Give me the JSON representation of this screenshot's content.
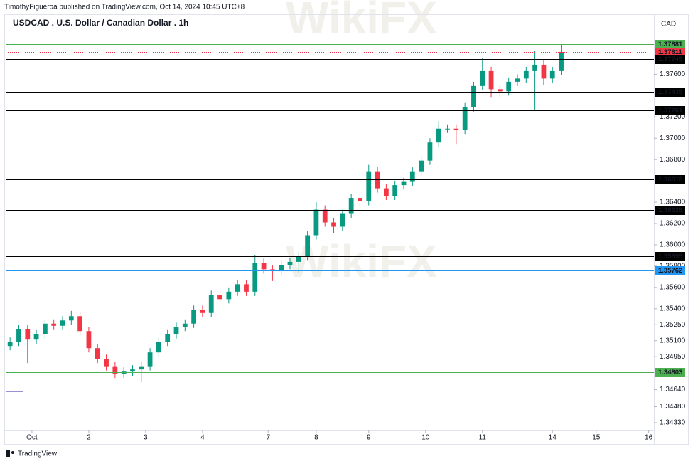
{
  "header": {
    "byline": "TimothyFigueroa published on TradingView.com, Oct 14, 2024 10:45 UTC+8",
    "watermark": "WikiFX"
  },
  "footer": {
    "brand": "TradingView"
  },
  "chart_data": {
    "type": "candlestick",
    "title": "USDCAD . U.S. Dollar / Canadian Dollar . 1h",
    "currency": "CAD",
    "up_color": "#089981",
    "down_color": "#f23645",
    "grid": false,
    "xlim": [
      -0.5,
      73.6
    ],
    "xticks": [
      {
        "value": 2.5,
        "label": "Oct"
      },
      {
        "value": 9,
        "label": "2"
      },
      {
        "value": 15.5,
        "label": "3"
      },
      {
        "value": 22,
        "label": "4"
      },
      {
        "value": 29.5,
        "label": "7"
      },
      {
        "value": 35,
        "label": "8"
      },
      {
        "value": 41,
        "label": "9"
      },
      {
        "value": 47.5,
        "label": "10"
      },
      {
        "value": 54,
        "label": "11"
      },
      {
        "value": 62,
        "label": "14"
      },
      {
        "value": 67,
        "label": "15"
      },
      {
        "value": 73,
        "label": "16"
      }
    ],
    "ylim": [
      1.3429,
      1.3803
    ],
    "yticks": [
      {
        "value": 1.376,
        "label": "1.37600"
      },
      {
        "value": 1.372,
        "label": "1.37200"
      },
      {
        "value": 1.37,
        "label": "1.37000"
      },
      {
        "value": 1.368,
        "label": "1.36800"
      },
      {
        "value": 1.364,
        "label": "1.36400"
      },
      {
        "value": 1.362,
        "label": "1.36200"
      },
      {
        "value": 1.36,
        "label": "1.36000"
      },
      {
        "value": 1.358,
        "label": "1.35800"
      },
      {
        "value": 1.356,
        "label": "1.35600"
      },
      {
        "value": 1.354,
        "label": "1.35400"
      },
      {
        "value": 1.3525,
        "label": "1.35250"
      },
      {
        "value": 1.351,
        "label": "1.35100"
      },
      {
        "value": 1.3495,
        "label": "1.34950"
      },
      {
        "value": 1.3464,
        "label": "1.34640"
      },
      {
        "value": 1.3448,
        "label": "1.34480"
      },
      {
        "value": 1.3433,
        "label": "1.34330"
      }
    ],
    "open": [
      1.3505,
      1.3509,
      1.3521,
      1.3511,
      1.3516,
      1.3526,
      1.3524,
      1.3529,
      1.3533,
      1.3519,
      1.3503,
      1.3493,
      1.3486,
      1.3479,
      1.3481,
      1.3483,
      1.3486,
      1.3499,
      1.3509,
      1.3516,
      1.3523,
      1.3526,
      1.3539,
      1.3536,
      1.3553,
      1.3549,
      1.3556,
      1.3563,
      1.3556,
      1.3583,
      1.3577,
      1.3576,
      1.3581,
      1.3584,
      1.3589,
      1.3609,
      1.3633,
      1.3621,
      1.3617,
      1.3629,
      1.3644,
      1.3641,
      1.3669,
      1.3653,
      1.3646,
      1.3656,
      1.3659,
      1.3669,
      1.3679,
      1.3696,
      1.3709,
      1.3709,
      1.3708,
      1.3729,
      1.3749,
      1.3763,
      1.3746,
      1.3744,
      1.3753,
      1.3756,
      1.3763,
      1.3769,
      1.3756,
      1.3763
    ],
    "high": [
      1.3513,
      1.3525,
      1.3525,
      1.352,
      1.353,
      1.353,
      1.3533,
      1.3538,
      1.3537,
      1.3523,
      1.3507,
      1.3497,
      1.349,
      1.3485,
      1.3487,
      1.349,
      1.3503,
      1.3513,
      1.352,
      1.3527,
      1.353,
      1.3543,
      1.3543,
      1.3557,
      1.3557,
      1.356,
      1.3567,
      1.3567,
      1.359,
      1.3587,
      1.3581,
      1.3585,
      1.3588,
      1.3593,
      1.3613,
      1.364,
      1.3637,
      1.3625,
      1.3633,
      1.3648,
      1.3648,
      1.3675,
      1.3673,
      1.3657,
      1.366,
      1.3663,
      1.3673,
      1.3683,
      1.37,
      1.3716,
      1.3713,
      1.3713,
      1.3733,
      1.3753,
      1.3775,
      1.3767,
      1.375,
      1.3757,
      1.376,
      1.3767,
      1.3782,
      1.3773,
      1.3767,
      1.3788
    ],
    "low": [
      1.3501,
      1.3505,
      1.3489,
      1.3507,
      1.3512,
      1.352,
      1.352,
      1.3525,
      1.3515,
      1.3499,
      1.3489,
      1.3482,
      1.3475,
      1.3475,
      1.3477,
      1.3471,
      1.3482,
      1.3495,
      1.3505,
      1.3512,
      1.3519,
      1.3522,
      1.3532,
      1.3532,
      1.3545,
      1.3545,
      1.3552,
      1.3552,
      1.3552,
      1.3573,
      1.3566,
      1.3572,
      1.3577,
      1.3574,
      1.3585,
      1.3605,
      1.3617,
      1.3611,
      1.3613,
      1.3625,
      1.3637,
      1.3637,
      1.3649,
      1.3642,
      1.3642,
      1.3652,
      1.3655,
      1.3665,
      1.3675,
      1.3692,
      1.3705,
      1.3694,
      1.3704,
      1.3725,
      1.3745,
      1.3738,
      1.3738,
      1.374,
      1.3749,
      1.3752,
      1.3726,
      1.375,
      1.3752,
      1.3759
    ],
    "close": [
      1.3509,
      1.3521,
      1.3511,
      1.3516,
      1.3526,
      1.3524,
      1.3529,
      1.3533,
      1.3519,
      1.3503,
      1.3493,
      1.3486,
      1.3479,
      1.3481,
      1.3483,
      1.3486,
      1.3499,
      1.3509,
      1.3516,
      1.3523,
      1.3526,
      1.3539,
      1.3536,
      1.3553,
      1.3549,
      1.3556,
      1.3563,
      1.3556,
      1.3583,
      1.3577,
      1.3576,
      1.3581,
      1.3584,
      1.3589,
      1.3609,
      1.3633,
      1.3621,
      1.3617,
      1.3629,
      1.3644,
      1.3641,
      1.3669,
      1.3653,
      1.3646,
      1.3656,
      1.3659,
      1.3669,
      1.3679,
      1.3696,
      1.3709,
      1.3709,
      1.3708,
      1.3729,
      1.3749,
      1.3763,
      1.3746,
      1.3744,
      1.3753,
      1.3756,
      1.3763,
      1.3769,
      1.3756,
      1.3763,
      1.3781
    ],
    "levels": [
      {
        "value": 1.37881,
        "color": "#4caf50",
        "style": "solid"
      },
      {
        "value": 1.37811,
        "color": "#f23645",
        "style": "dotted"
      },
      {
        "value": 1.37745,
        "color": "#000000",
        "style": "solid"
      },
      {
        "value": 1.37435,
        "color": "#000000",
        "style": "solid"
      },
      {
        "value": 1.37261,
        "color": "#000000",
        "style": "solid"
      },
      {
        "value": 1.36612,
        "color": "#000000",
        "style": "solid"
      },
      {
        "value": 1.36328,
        "color": "#000000",
        "style": "solid"
      },
      {
        "value": 1.35895,
        "color": "#000000",
        "style": "solid"
      },
      {
        "value": 1.35762,
        "color": "#2196f3",
        "style": "solid"
      },
      {
        "value": 1.34803,
        "color": "#4caf50",
        "style": "solid"
      }
    ]
  }
}
